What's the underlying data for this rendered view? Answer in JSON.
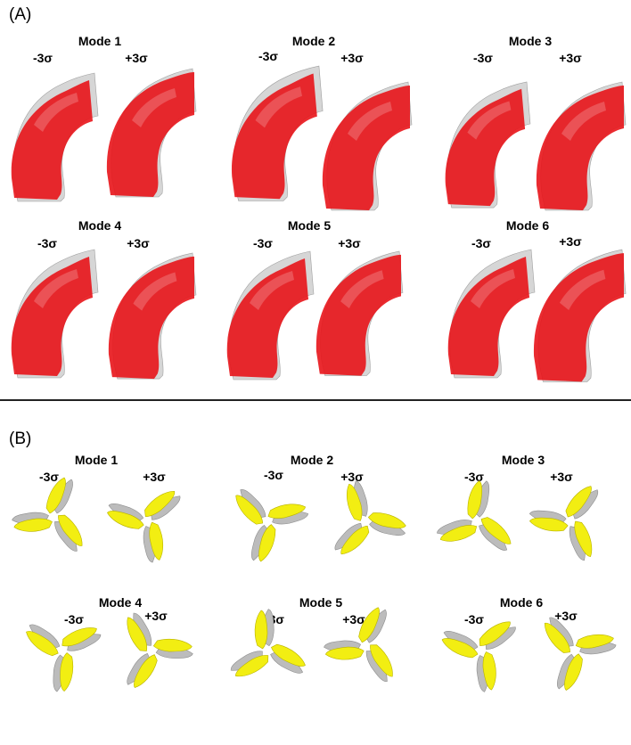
{
  "panel_a": {
    "label": "(A)",
    "modes": [
      {
        "title": "Mode 1",
        "minus": "-3σ",
        "plus": "+3σ"
      },
      {
        "title": "Mode 2",
        "minus": "-3σ",
        "plus": "+3σ"
      },
      {
        "title": "Mode 3",
        "minus": "-3σ",
        "plus": "+3σ"
      },
      {
        "title": "Mode 4",
        "minus": "-3σ",
        "plus": "+3σ"
      },
      {
        "title": "Mode 5",
        "minus": "-3σ",
        "plus": "+3σ"
      },
      {
        "title": "Mode 6",
        "minus": "-3σ",
        "plus": "+3σ"
      }
    ]
  },
  "panel_b": {
    "label": "(B)",
    "modes": [
      {
        "title": "Mode 1",
        "minus": "-3σ",
        "plus": "+3σ"
      },
      {
        "title": "Mode 2",
        "minus": "-3σ",
        "plus": "+3σ"
      },
      {
        "title": "Mode 3",
        "minus": "-3σ",
        "plus": "+3σ"
      },
      {
        "title": "Mode 4",
        "minus": "-3σ",
        "plus": "+3σ"
      },
      {
        "title": "Mode 5",
        "minus": "-3σ",
        "plus": "+3σ"
      },
      {
        "title": "Mode 6",
        "minus": "-3σ",
        "plus": "+3σ"
      }
    ]
  },
  "colors": {
    "aorta_red": "#e8141a",
    "mean_gray": "#c8c8c8",
    "leaflet_yellow": "#f2ee12",
    "leaflet_gray": "#bcbcbc"
  }
}
